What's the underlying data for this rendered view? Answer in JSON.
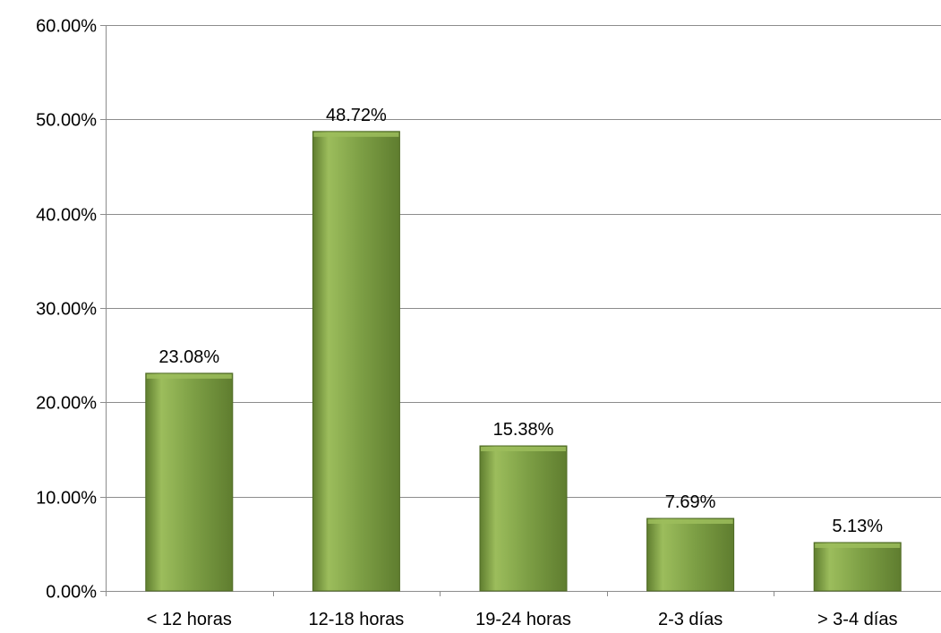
{
  "chart_data": {
    "type": "bar",
    "title": "",
    "xlabel": "",
    "ylabel": "",
    "categories": [
      "< 12 horas",
      "12-18 horas",
      "19-24 horas",
      "2-3 días",
      "> 3-4 días"
    ],
    "values": [
      23.08,
      48.72,
      15.38,
      7.69,
      5.13
    ],
    "data_labels": [
      "23.08%",
      "48.72%",
      "15.38%",
      "7.69%",
      "5.13%"
    ],
    "ylim": [
      0,
      60
    ],
    "yticks": [
      0,
      10,
      20,
      30,
      40,
      50,
      60
    ],
    "ytick_labels": [
      "0.00%",
      "10.00%",
      "20.00%",
      "30.00%",
      "40.00%",
      "50.00%",
      "60.00%"
    ],
    "grid": true,
    "legend": "none",
    "colors": {
      "bar_light": "#9cbd5c",
      "bar_main": "#7d9f45",
      "bar_dark": "#5f7d2f",
      "bar_edge": "#4f6a24",
      "grid": "#8c8c8c"
    }
  }
}
